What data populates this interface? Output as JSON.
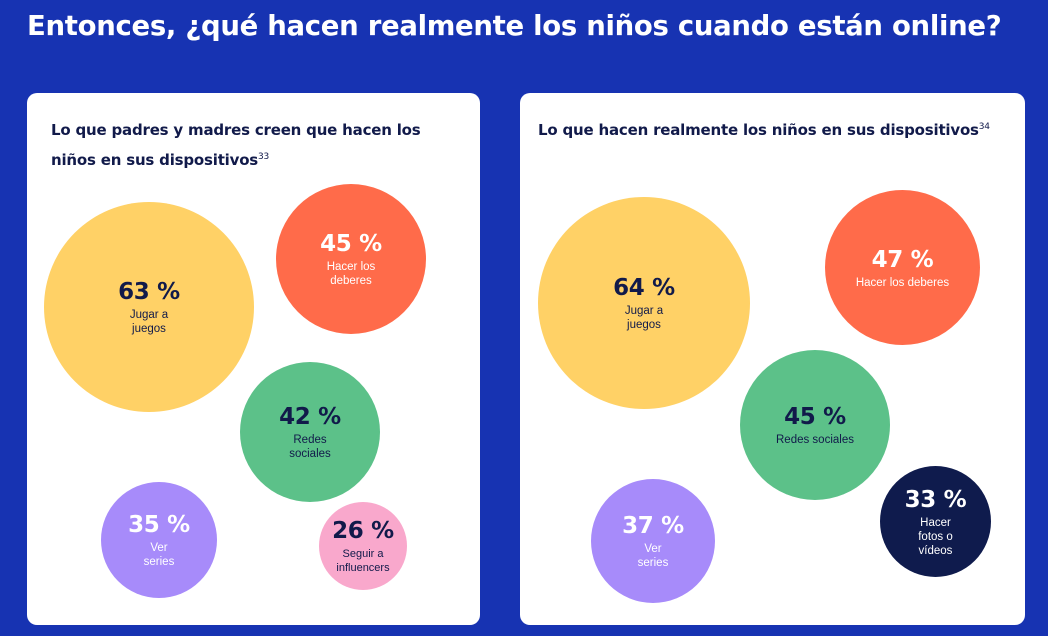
{
  "title": "Entonces, ¿qué hacen realmente los niños cuando están online?",
  "chart_data": [
    {
      "type": "bubble",
      "title": "Lo que padres y madres creen que hacen los niños en sus dispositivos",
      "footnote": "33",
      "items": [
        {
          "label": "Jugar a juegos",
          "value": 63,
          "display": "63 %",
          "color": "#ffd166",
          "text_color": "#111a4a"
        },
        {
          "label": "Hacer los deberes",
          "value": 45,
          "display": "45 %",
          "color": "#ff6b4a",
          "text_color": "#ffffff"
        },
        {
          "label": "Redes sociales",
          "value": 42,
          "display": "42 %",
          "color": "#5cc189",
          "text_color": "#111a4a"
        },
        {
          "label": "Ver series",
          "value": 35,
          "display": "35 %",
          "color": "#a78bfa",
          "text_color": "#ffffff"
        },
        {
          "label": "Seguir a influencers",
          "value": 26,
          "display": "26 %",
          "color": "#f9a8cc",
          "text_color": "#111a4a"
        }
      ]
    },
    {
      "type": "bubble",
      "title": "Lo que hacen realmente los niños en sus dispositivos",
      "footnote": "34",
      "items": [
        {
          "label": "Jugar a juegos",
          "value": 64,
          "display": "64 %",
          "color": "#ffd166",
          "text_color": "#111a4a"
        },
        {
          "label": "Hacer los deberes",
          "value": 47,
          "display": "47 %",
          "color": "#ff6b4a",
          "text_color": "#ffffff"
        },
        {
          "label": "Redes sociales",
          "value": 45,
          "display": "45 %",
          "color": "#5cc189",
          "text_color": "#111a4a"
        },
        {
          "label": "Ver series",
          "value": 37,
          "display": "37 %",
          "color": "#a78bfa",
          "text_color": "#ffffff"
        },
        {
          "label": "Hacer fotos o vídeos",
          "value": 33,
          "display": "33 %",
          "color": "#0f1b4d",
          "text_color": "#ffffff"
        }
      ]
    }
  ]
}
